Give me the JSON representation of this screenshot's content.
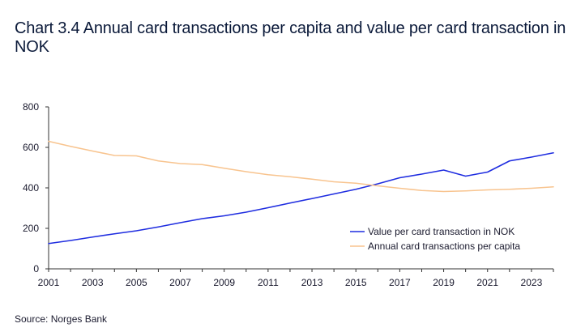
{
  "title": "Chart 3.4 Annual card transactions per capita and value per card transaction in NOK",
  "source": "Source: Norges Bank",
  "colors": {
    "value_series": "#1f2de0",
    "annual_series": "#f8c48f",
    "axis": "#333333",
    "text": "#1a1a2e"
  },
  "chart_data": {
    "type": "line",
    "title": "Chart 3.4 Annual card transactions per capita and value per card transaction in NOK",
    "xlabel": "",
    "ylabel": "",
    "xlim": [
      2001,
      2024
    ],
    "ylim": [
      0,
      800
    ],
    "grid": false,
    "legend_position": "lower-right",
    "x_ticks": [
      2001,
      2003,
      2005,
      2007,
      2009,
      2011,
      2013,
      2015,
      2017,
      2019,
      2021,
      2023
    ],
    "y_ticks": [
      0,
      200,
      400,
      600,
      800
    ],
    "x": [
      2001,
      2002,
      2003,
      2004,
      2005,
      2006,
      2007,
      2008,
      2009,
      2010,
      2011,
      2012,
      2013,
      2014,
      2015,
      2016,
      2017,
      2018,
      2019,
      2020,
      2021,
      2022,
      2023,
      2024
    ],
    "series": [
      {
        "name": "Value per card transaction in NOK",
        "color": "#1f2de0",
        "values": [
          125,
          140,
          157,
          173,
          188,
          207,
          228,
          248,
          262,
          280,
          302,
          325,
          347,
          370,
          393,
          420,
          450,
          468,
          488,
          458,
          478,
          533,
          552,
          573
        ]
      },
      {
        "name": "Annual card transactions per capita",
        "color": "#f8c48f",
        "values": [
          630,
          605,
          582,
          560,
          558,
          533,
          520,
          515,
          497,
          480,
          465,
          455,
          443,
          430,
          423,
          410,
          398,
          387,
          382,
          385,
          390,
          393,
          398,
          405
        ]
      }
    ]
  }
}
